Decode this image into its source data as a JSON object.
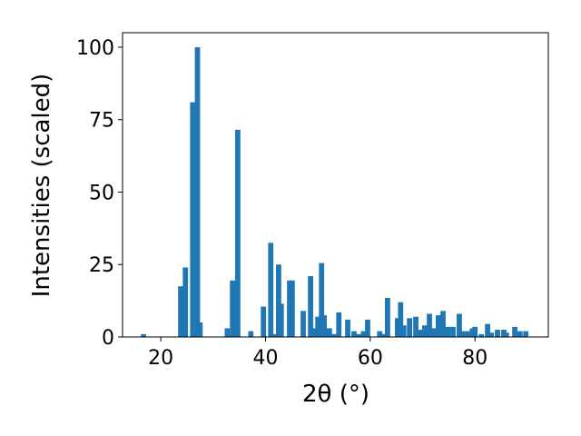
{
  "chart_data": {
    "type": "bar",
    "xlabel": "2θ (°)",
    "ylabel": "Intensities (scaled)",
    "color": "#1f77b4",
    "x": [
      16.7,
      23.8,
      24.7,
      26.1,
      27.0,
      27.5,
      32.7,
      33.7,
      34.2,
      34.7,
      37.2,
      39.6,
      41.0,
      41.7,
      42.5,
      43.0,
      44.6,
      45.1,
      47.2,
      48.6,
      49.3,
      50.0,
      50.7,
      51.2,
      52.2,
      53.1,
      54.0,
      55.7,
      56.9,
      57.8,
      58.7,
      59.5,
      61.8,
      62.5,
      63.3,
      65.2,
      65.8,
      66.4,
      67.5,
      68.7,
      69.6,
      70.4,
      71.3,
      72.0,
      73.0,
      73.9,
      74.8,
      75.8,
      77.0,
      77.9,
      78.8,
      79.5,
      80.0,
      81.2,
      82.4,
      83.1,
      84.3,
      85.5,
      86.0,
      87.6,
      88.6,
      89.7
    ],
    "values": [
      1,
      17.5,
      24,
      81,
      100,
      5,
      3,
      19.5,
      8,
      71.5,
      2,
      10.5,
      32.5,
      1,
      25,
      11.5,
      19.5,
      19.5,
      9,
      21,
      3,
      7,
      25.5,
      7.5,
      3,
      1,
      8.5,
      6,
      2,
      1,
      2,
      6,
      2,
      1,
      13.5,
      6.5,
      12,
      4,
      6.5,
      7,
      2.5,
      4,
      8,
      3,
      7.5,
      9,
      3.5,
      3.5,
      8,
      2,
      2,
      3,
      3.5,
      1,
      4.5,
      1.5,
      2.5,
      2.5,
      1.5,
      3.5,
      2,
      2
    ],
    "xlim": [
      12.7,
      94.0
    ],
    "ylim": [
      0,
      105
    ],
    "xticks": [
      20,
      40,
      60,
      80
    ],
    "yticks": [
      0,
      25,
      50,
      75,
      100
    ]
  }
}
